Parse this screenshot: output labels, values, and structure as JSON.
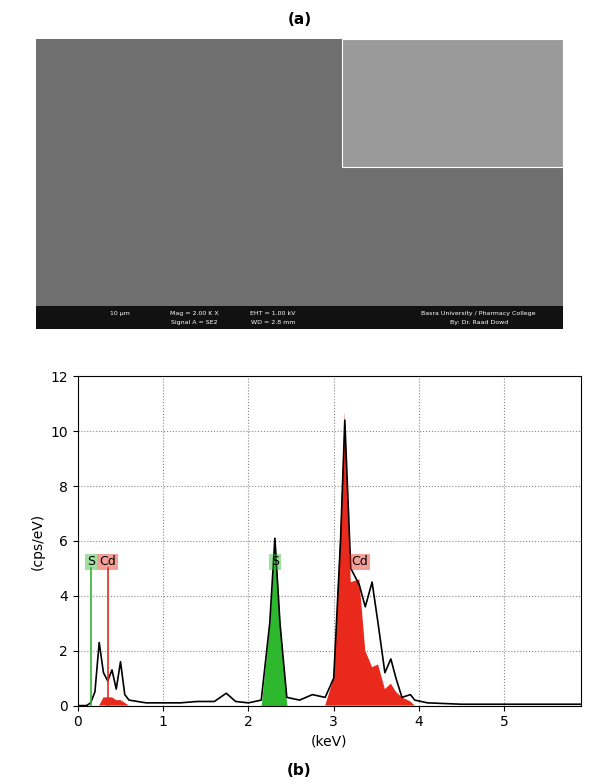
{
  "figure": {
    "panel_labels": [
      "(a)",
      "(b)"
    ],
    "sem_image": {
      "info_bar": [
        "10 µm",
        "Mag = 2.00 K X",
        "Signal A = SE2",
        "EHT = 1.00 kV",
        "WD = 2.8 mm",
        "Basra University / Pharmacy College",
        "By: Dr. Raad Dowd"
      ]
    }
  },
  "chart_data": {
    "type": "line",
    "x_label": "(keV)",
    "y_label": "(cps/eV)",
    "x": [
      0.0,
      0.1,
      0.15,
      0.2,
      0.25,
      0.3,
      0.35,
      0.4,
      0.45,
      0.5,
      0.55,
      0.6,
      0.7,
      0.8,
      1.0,
      1.2,
      1.4,
      1.6,
      1.74,
      1.85,
      2.0,
      2.15,
      2.25,
      2.31,
      2.37,
      2.45,
      2.6,
      2.75,
      2.9,
      3.0,
      3.08,
      3.13,
      3.2,
      3.3,
      3.37,
      3.45,
      3.52,
      3.6,
      3.67,
      3.73,
      3.8,
      3.9,
      3.95,
      4.1,
      4.5,
      5.0,
      5.9
    ],
    "series": [
      {
        "color": "#000000",
        "type": "line",
        "values": [
          0,
          0,
          0.1,
          0.5,
          2.3,
          1.2,
          0.9,
          1.3,
          0.6,
          1.6,
          0.4,
          0.2,
          0.15,
          0.1,
          0.1,
          0.1,
          0.15,
          0.15,
          0.45,
          0.15,
          0.1,
          0.2,
          3.0,
          6.1,
          3.0,
          0.3,
          0.2,
          0.4,
          0.3,
          1.0,
          6.0,
          10.4,
          5.0,
          4.4,
          3.6,
          4.5,
          3.0,
          1.2,
          1.7,
          1.0,
          0.3,
          0.4,
          0.2,
          0.1,
          0.05,
          0.05,
          0.05
        ]
      },
      {
        "color": "#2db82d",
        "type": "area",
        "values": [
          null,
          null,
          null,
          null,
          null,
          null,
          null,
          null,
          null,
          null,
          null,
          null,
          null,
          null,
          null,
          null,
          null,
          null,
          null,
          null,
          null,
          0,
          3.0,
          6.2,
          3.0,
          0,
          null,
          null,
          null,
          null,
          null,
          null,
          null,
          null,
          null,
          null,
          null,
          null,
          null,
          null,
          null,
          null,
          null,
          null,
          null,
          null,
          null
        ]
      },
      {
        "color": "#e8291c",
        "type": "area",
        "values": [
          null,
          null,
          null,
          null,
          0,
          0.3,
          0.3,
          0.3,
          0.2,
          0.2,
          0.1,
          0,
          null,
          null,
          null,
          null,
          null,
          null,
          null,
          null,
          null,
          null,
          null,
          null,
          null,
          null,
          null,
          null,
          0,
          1.0,
          6.5,
          10.7,
          4.5,
          4.6,
          2.0,
          1.4,
          1.5,
          0.6,
          0.8,
          0.5,
          0.3,
          0.15,
          0,
          null,
          null,
          null,
          null
        ]
      }
    ],
    "element_lines": [
      {
        "text": "S",
        "x": 0.15,
        "y": 5.0,
        "color": "#2db82d"
      },
      {
        "text": "Cd",
        "x": 0.35,
        "y": 5.0,
        "color": "#e8291c"
      }
    ],
    "annotations": [
      {
        "text": "S",
        "x": 2.31,
        "y": 5.0,
        "color": "#2db82d"
      },
      {
        "text": "Cd",
        "x": 3.3,
        "y": 5.0,
        "color": "#e8291c"
      }
    ],
    "xlim": [
      0,
      5.9
    ],
    "xticks": [
      0,
      1,
      2,
      3,
      4,
      5
    ],
    "ylim": [
      0,
      12
    ],
    "yticks": [
      0,
      2,
      4,
      6,
      8,
      10,
      12
    ],
    "grid": true
  }
}
